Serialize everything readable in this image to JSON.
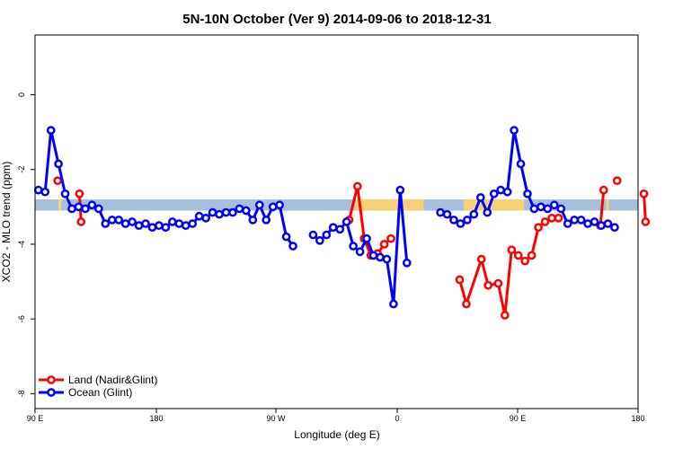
{
  "chart_data": {
    "type": "line",
    "title": "5N-10N October (Ver 9)   2014-09-06 to 2018-12-31",
    "xlabel": "Longitude (deg E)",
    "ylabel": "XCO2 - MLO trend (ppm)",
    "xlim": [
      90,
      450
    ],
    "ylim": [
      -8.4,
      1.6
    ],
    "xticks": [
      {
        "value": 90,
        "label": "90 E"
      },
      {
        "value": 180,
        "label": "180"
      },
      {
        "value": 270,
        "label": "90 W"
      },
      {
        "value": 360,
        "label": "0"
      },
      {
        "value": 450,
        "label": "90 E"
      },
      {
        "value": 540,
        "label": "180"
      }
    ],
    "yticks": [
      {
        "value": 0,
        "label": "0"
      },
      {
        "value": -2,
        "label": "-2"
      },
      {
        "value": -4,
        "label": "-4"
      },
      {
        "value": -6,
        "label": "-6"
      },
      {
        "value": -8,
        "label": "-8"
      }
    ],
    "legend_position": "bottom-left",
    "band": {
      "y_top": -2.8,
      "y_bottom": -3.1,
      "colors": {
        "ocean": "#a8bfdc",
        "land": "#f5d27a"
      }
    },
    "series": [
      {
        "name": "Land (Nadir&Glint)",
        "color": "#ff0000",
        "segments": [
          [
            [
              103.5,
              -2.3
            ]
          ],
          [
            [
              116.5,
              -2.65
            ],
            [
              117.5,
              -3.4
            ]
          ],
          [
            [
              277.5,
              -3.35
            ],
            [
              282.5,
              -2.45
            ],
            [
              286.5,
              -3.85
            ],
            [
              290.5,
              -4.3
            ],
            [
              294.5,
              -4.25
            ],
            [
              298.5,
              -4.0
            ],
            [
              302.5,
              -3.85
            ]
          ],
          [
            [
              343.5,
              -4.95
            ],
            [
              347.5,
              -5.6
            ],
            [
              356.5,
              -4.4
            ],
            [
              360.5,
              -5.1
            ],
            [
              366.5,
              -5.05
            ],
            [
              370.5,
              -5.9
            ],
            [
              374.5,
              -4.15
            ],
            [
              378.5,
              -4.3
            ],
            [
              382.5,
              -4.45
            ],
            [
              386.5,
              -4.3
            ],
            [
              390.5,
              -3.55
            ],
            [
              394.5,
              -3.4
            ],
            [
              398.5,
              -3.3
            ],
            [
              402.5,
              -3.3
            ]
          ],
          [
            [
              427.5,
              -3.5
            ],
            [
              429.5,
              -2.55
            ]
          ],
          [
            [
              437.5,
              -2.3
            ]
          ],
          [
            [
              453.5,
              -2.65
            ],
            [
              454.5,
              -3.4
            ]
          ]
        ]
      },
      {
        "name": "Ocean (Glint)",
        "color": "#0000ff",
        "segments": [
          [
            [
              92,
              -2.55
            ],
            [
              96,
              -2.6
            ],
            [
              99.5,
              -0.95
            ],
            [
              104,
              -1.85
            ],
            [
              108,
              -2.65
            ],
            [
              112,
              -3.05
            ],
            [
              116,
              -3.0
            ],
            [
              120,
              -3.05
            ],
            [
              124,
              -2.95
            ],
            [
              128,
              -3.05
            ],
            [
              132,
              -3.45
            ],
            [
              136,
              -3.35
            ],
            [
              140,
              -3.35
            ],
            [
              144,
              -3.45
            ],
            [
              148,
              -3.4
            ],
            [
              152,
              -3.5
            ],
            [
              156,
              -3.45
            ],
            [
              160,
              -3.55
            ],
            [
              164,
              -3.5
            ],
            [
              168,
              -3.55
            ],
            [
              172,
              -3.4
            ],
            [
              176,
              -3.45
            ],
            [
              180,
              -3.5
            ],
            [
              184,
              -3.45
            ],
            [
              188,
              -3.25
            ],
            [
              192,
              -3.3
            ],
            [
              196,
              -3.15
            ],
            [
              200,
              -3.2
            ],
            [
              204,
              -3.15
            ],
            [
              208,
              -3.15
            ],
            [
              212,
              -3.05
            ],
            [
              216,
              -3.1
            ],
            [
              220,
              -3.35
            ],
            [
              224,
              -2.95
            ],
            [
              228,
              -3.35
            ],
            [
              232,
              -3.0
            ],
            [
              236,
              -2.95
            ],
            [
              240,
              -3.8
            ],
            [
              244,
              -4.05
            ]
          ],
          [
            [
              256,
              -3.75
            ],
            [
              260,
              -3.9
            ],
            [
              264,
              -3.75
            ],
            [
              268,
              -3.55
            ],
            [
              272,
              -3.6
            ],
            [
              276,
              -3.4
            ],
            [
              280,
              -4.05
            ],
            [
              284,
              -4.2
            ],
            [
              288,
              -3.85
            ],
            [
              292,
              -4.3
            ],
            [
              296,
              -4.35
            ],
            [
              300,
              -4.4
            ],
            [
              304,
              -5.6
            ],
            [
              308,
              -2.55
            ],
            [
              312,
              -4.5
            ]
          ],
          [
            [
              332,
              -3.15
            ],
            [
              336,
              -3.2
            ],
            [
              340,
              -3.35
            ],
            [
              344,
              -3.45
            ],
            [
              348,
              -3.35
            ],
            [
              352,
              -3.2
            ],
            [
              356,
              -2.75
            ],
            [
              360,
              -3.15
            ],
            [
              364,
              -2.65
            ],
            [
              368,
              -2.55
            ],
            [
              372,
              -2.6
            ],
            [
              376,
              -0.95
            ],
            [
              380,
              -1.85
            ],
            [
              384,
              -2.65
            ],
            [
              388,
              -3.05
            ],
            [
              392,
              -3.0
            ],
            [
              396,
              -3.05
            ],
            [
              400,
              -2.95
            ],
            [
              404,
              -3.05
            ],
            [
              408,
              -3.45
            ],
            [
              412,
              -3.35
            ],
            [
              416,
              -3.35
            ],
            [
              420,
              -3.45
            ],
            [
              424,
              -3.4
            ],
            [
              428,
              -3.5
            ],
            [
              432,
              -3.45
            ],
            [
              436,
              -3.55
            ]
          ]
        ]
      }
    ]
  }
}
